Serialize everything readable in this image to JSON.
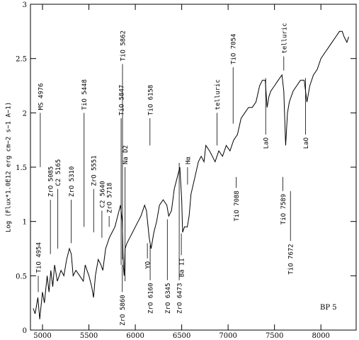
{
  "chart_data": {
    "type": "line",
    "ylabel": "Log (Flux*1.0E12 erg cm−2 s−1 A−1)",
    "xlim": [
      4870,
      8380
    ],
    "ylim": [
      0,
      3
    ],
    "xticks": [
      5000,
      5500,
      6000,
      6500,
      7000,
      7500,
      8000
    ],
    "yticks": [
      0,
      0.5,
      1,
      1.5,
      2,
      2.5,
      3
    ],
    "x": [
      4900,
      4920,
      4950,
      4970,
      5000,
      5020,
      5050,
      5070,
      5090,
      5110,
      5130,
      5160,
      5180,
      5200,
      5230,
      5260,
      5290,
      5310,
      5330,
      5360,
      5400,
      5440,
      5460,
      5480,
      5500,
      5530,
      5550,
      5570,
      5600,
      5630,
      5650,
      5680,
      5720,
      5750,
      5780,
      5810,
      5840,
      5860,
      5870,
      5880,
      5890,
      5910,
      5940,
      5970,
      6000,
      6030,
      6060,
      6100,
      6120,
      6150,
      6170,
      6200,
      6230,
      6260,
      6300,
      6340,
      6360,
      6390,
      6420,
      6450,
      6480,
      6500,
      6510,
      6530,
      6560,
      6580,
      6600,
      6640,
      6680,
      6710,
      6740,
      6760,
      6800,
      6830,
      6860,
      6900,
      6940,
      6980,
      7020,
      7060,
      7100,
      7140,
      7180,
      7220,
      7260,
      7300,
      7340,
      7370,
      7400,
      7420,
      7440,
      7460,
      7500,
      7540,
      7580,
      7600,
      7620,
      7640,
      7660,
      7700,
      7740,
      7780,
      7820,
      7850,
      7880,
      7920,
      7960,
      8000,
      8040,
      8080,
      8120,
      8160,
      8200,
      8230,
      8250,
      8280,
      8300
    ],
    "series": [
      {
        "color": "#000000",
        "values": [
          0.2,
          0.15,
          0.3,
          0.1,
          0.35,
          0.25,
          0.5,
          0.35,
          0.55,
          0.4,
          0.6,
          0.45,
          0.5,
          0.55,
          0.5,
          0.65,
          0.75,
          0.7,
          0.5,
          0.55,
          0.5,
          0.45,
          0.6,
          0.55,
          0.5,
          0.4,
          0.3,
          0.5,
          0.65,
          0.6,
          0.55,
          0.75,
          0.85,
          0.9,
          0.95,
          1.05,
          1.15,
          1.0,
          0.6,
          0.5,
          0.75,
          0.8,
          0.85,
          0.9,
          0.95,
          1.0,
          1.05,
          1.15,
          1.1,
          0.85,
          0.75,
          0.9,
          1.0,
          1.15,
          1.2,
          1.15,
          1.05,
          1.1,
          1.3,
          1.4,
          1.5,
          1.2,
          0.9,
          0.95,
          0.95,
          1.05,
          1.25,
          1.4,
          1.55,
          1.6,
          1.55,
          1.7,
          1.65,
          1.6,
          1.55,
          1.65,
          1.6,
          1.7,
          1.65,
          1.75,
          1.8,
          1.95,
          2.0,
          2.05,
          2.05,
          2.1,
          2.25,
          2.3,
          2.3,
          2.05,
          2.15,
          2.2,
          2.25,
          2.3,
          2.35,
          2.2,
          1.7,
          2.0,
          2.1,
          2.2,
          2.25,
          2.3,
          2.3,
          2.1,
          2.25,
          2.35,
          2.4,
          2.5,
          2.55,
          2.6,
          2.65,
          2.7,
          2.75,
          2.75,
          2.7,
          2.65,
          2.7
        ]
      }
    ],
    "annotations": [
      {
        "text": "MS 4976",
        "x": 4976,
        "y1": 1.5,
        "y2": 2.0,
        "side": "top"
      },
      {
        "text": "TiO 4954",
        "x": 4954,
        "y1": 0.35,
        "y2": 0.5,
        "side": "top"
      },
      {
        "text": "ZrO 5085",
        "x": 5085,
        "y1": 0.7,
        "y2": 1.2,
        "side": "top"
      },
      {
        "text": "C2 5165",
        "x": 5165,
        "y1": 0.75,
        "y2": 1.3,
        "side": "top"
      },
      {
        "text": "ZrO 5310",
        "x": 5310,
        "y1": 0.8,
        "y2": 1.2,
        "side": "top"
      },
      {
        "text": "TiO 5448",
        "x": 5448,
        "y1": 0.95,
        "y2": 2.0,
        "side": "top"
      },
      {
        "text": "ZrO 5551",
        "x": 5551,
        "y1": 0.9,
        "y2": 1.3,
        "side": "top"
      },
      {
        "text": "C2 5640",
        "x": 5640,
        "y1": 0.85,
        "y2": 1.1,
        "side": "top"
      },
      {
        "text": "ZrO 5718",
        "x": 5718,
        "y1": 0.95,
        "y2": 1.05,
        "side": "top"
      },
      {
        "text": "TiO 5847",
        "x": 5847,
        "y1": 0.6,
        "y2": 1.95,
        "side": "top"
      },
      {
        "text": "TiO 5862",
        "x": 5862,
        "y1": 0.65,
        "y2": 2.45,
        "side": "top"
      },
      {
        "text": "Na D2",
        "x": 5890,
        "y1": 0.45,
        "y2": 1.5,
        "side": "top"
      },
      {
        "text": "ZrO 5860",
        "x": 5860,
        "y1": 0.35,
        "y2": 0.6,
        "side": "bottom"
      },
      {
        "text": "TiO 6158",
        "x": 6158,
        "y1": 1.7,
        "y2": 1.95,
        "side": "top"
      },
      {
        "text": "YO",
        "x": 6130,
        "y1": 0.66,
        "y2": 0.8,
        "side": "bottom"
      },
      {
        "text": "ZrO 6160",
        "x": 6160,
        "y1": 0.46,
        "y2": 0.78,
        "side": "bottom"
      },
      {
        "text": "ZrO 6345",
        "x": 6345,
        "y1": 0.46,
        "y2": 1.02,
        "side": "bottom"
      },
      {
        "text": "ZrO 6473",
        "x": 6473,
        "y1": 0.46,
        "y2": 1.54,
        "side": "bottom"
      },
      {
        "text": "Ba II",
        "x": 6496,
        "y1": 0.69,
        "y2": 0.89,
        "side": "bottom"
      },
      {
        "text": "Hα",
        "x": 6563,
        "y1": 1.34,
        "y2": 1.5,
        "side": "top"
      },
      {
        "text": "telluric",
        "x": 6880,
        "y1": 1.7,
        "y2": 2.0,
        "side": "top"
      },
      {
        "text": "TiO 7054",
        "x": 7054,
        "y1": 1.9,
        "y2": 2.42,
        "side": "top"
      },
      {
        "text": "TiO 7088",
        "x": 7088,
        "y1": 1.31,
        "y2": 1.41,
        "side": "bottom"
      },
      {
        "text": "LaO",
        "x": 7405,
        "y1": 1.8,
        "y2": 2.32,
        "side": "bottom"
      },
      {
        "text": "telluric",
        "x": 7600,
        "y1": 2.39,
        "y2": 2.52,
        "side": "top"
      },
      {
        "text": "TiO 7589",
        "x": 7589,
        "y1": 1.28,
        "y2": 1.41,
        "side": "bottom"
      },
      {
        "text": "TiO 7672",
        "x": 7672,
        "y1": 0.82,
        "y2": 1.28,
        "side": "bottom"
      },
      {
        "text": "LaO",
        "x": 7835,
        "y1": 1.8,
        "y2": 2.32,
        "side": "bottom"
      }
    ],
    "label": "BP 5"
  }
}
